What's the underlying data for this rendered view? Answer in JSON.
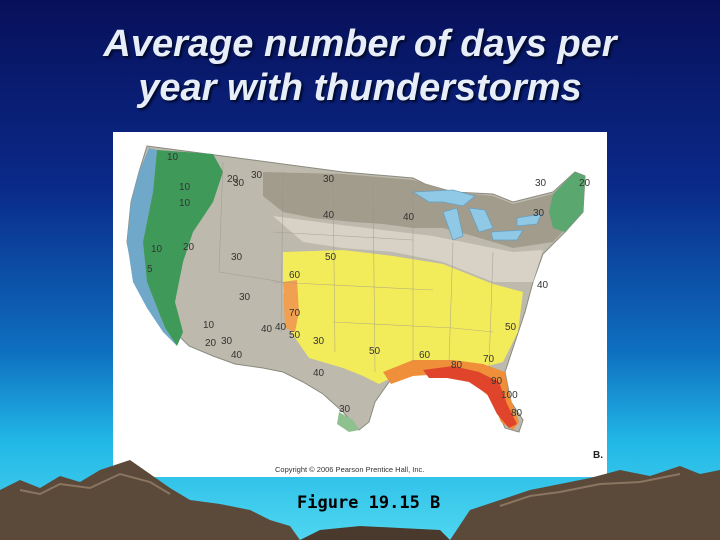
{
  "slide": {
    "title_line1": "Average number of days per",
    "title_line2": "year with thunderstorms",
    "caption": "Figure 19.15 B"
  },
  "map": {
    "copyright": "Copyright © 2006 Pearson Prentice Hall, Inc.",
    "panel_letter": "B.",
    "isoline_labels": [
      "10",
      "10",
      "10",
      "20",
      "30",
      "30",
      "30",
      "40",
      "10",
      "5",
      "20",
      "30",
      "30",
      "10",
      "60",
      "50",
      "70",
      "50",
      "20",
      "30",
      "40",
      "40",
      "50",
      "40",
      "30",
      "40",
      "30",
      "20",
      "30",
      "40",
      "50",
      "60",
      "80",
      "70",
      "90",
      "100",
      "80",
      "30",
      "40"
    ],
    "colors": {
      "lt_10": "#6fa8c8",
      "10_20": "#3f9a5a",
      "20_30": "#b9b9ad",
      "30_40": "#a39e8e",
      "40_50": "#d8d4c8",
      "50_60": "#f3ec5a",
      "60_70": "#f5c05a",
      "70_80": "#ef8f3a",
      "80_plus": "#e0452c"
    }
  }
}
